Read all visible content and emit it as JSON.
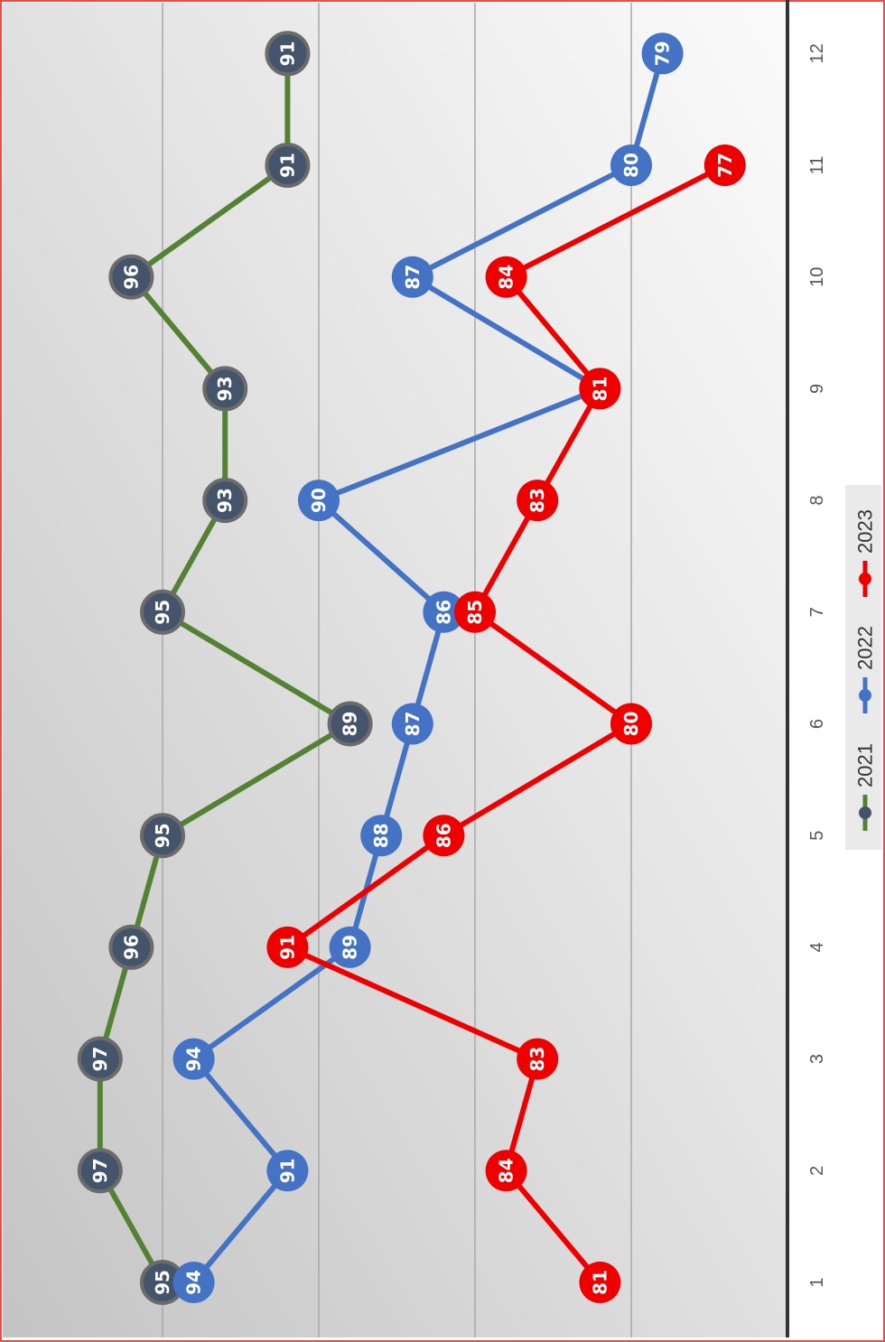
{
  "chart_data": {
    "type": "line",
    "orientation": "rotated-90-clockwise",
    "title": "",
    "xlabel": "",
    "ylabel": "",
    "categories": [
      "1",
      "2",
      "3",
      "4",
      "5",
      "6",
      "7",
      "8",
      "9",
      "10",
      "11",
      "12"
    ],
    "ylim": [
      75,
      100
    ],
    "gridlines": [
      80,
      85,
      90,
      95
    ],
    "grid": true,
    "legend_position": "bottom",
    "series": [
      {
        "name": "2021",
        "color": "#548235",
        "marker_color": "#44546A",
        "values": [
          95,
          97,
          97,
          96,
          95,
          89,
          95,
          93,
          93,
          96,
          91,
          91
        ]
      },
      {
        "name": "2022",
        "color": "#4472C4",
        "marker_color": "#4472C4",
        "values": [
          94,
          91,
          94,
          89,
          88,
          87,
          86,
          90,
          81,
          87,
          80,
          79
        ]
      },
      {
        "name": "2023",
        "color": "#EE0000",
        "marker_color": "#EE0000",
        "values": [
          81,
          84,
          83,
          91,
          86,
          80,
          85,
          83,
          81,
          84,
          77,
          null
        ]
      }
    ]
  }
}
